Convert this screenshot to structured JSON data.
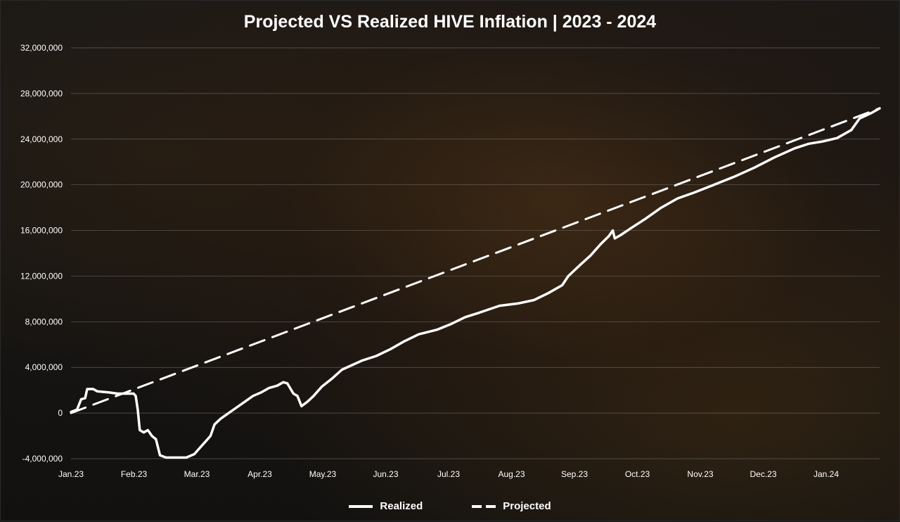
{
  "chart_data": {
    "type": "line",
    "title": "Projected VS Realized HIVE Inflation | 2023 - 2024",
    "xlabel": "",
    "ylabel": "",
    "x_tick_labels": [
      "Jan.23",
      "Feb.23",
      "Mar.23",
      "Apr.23",
      "May.23",
      "Jun.23",
      "Jul.23",
      "Aug.23",
      "Sep.23",
      "Oct.23",
      "Nov.23",
      "Dec.23",
      "Jan.24"
    ],
    "y_tick_labels": [
      "-4,000,000",
      "0",
      "4,000,000",
      "8,000,000",
      "12,000,000",
      "16,000,000",
      "20,000,000",
      "24,000,000",
      "28,000,000",
      "32,000,000"
    ],
    "ylim": [
      -4000000,
      32000000
    ],
    "grid": true,
    "legend_position": "bottom",
    "background_color": "#141414",
    "line_color": "#ffffff",
    "series": [
      {
        "name": "Realized",
        "style": "solid",
        "points": [
          [
            "2023-01-01",
            100000
          ],
          [
            "2023-01-04",
            300000
          ],
          [
            "2023-01-06",
            1200000
          ],
          [
            "2023-01-08",
            1300000
          ],
          [
            "2023-01-09",
            2100000
          ],
          [
            "2023-01-12",
            2100000
          ],
          [
            "2023-01-14",
            1900000
          ],
          [
            "2023-01-20",
            1800000
          ],
          [
            "2023-01-24",
            1700000
          ],
          [
            "2023-01-30",
            1700000
          ],
          [
            "2023-02-01",
            1700000
          ],
          [
            "2023-02-02",
            1500000
          ],
          [
            "2023-02-03",
            300000
          ],
          [
            "2023-02-04",
            -1500000
          ],
          [
            "2023-02-06",
            -1700000
          ],
          [
            "2023-02-08",
            -1500000
          ],
          [
            "2023-02-10",
            -2000000
          ],
          [
            "2023-02-12",
            -2300000
          ],
          [
            "2023-02-14",
            -3700000
          ],
          [
            "2023-02-17",
            -3900000
          ],
          [
            "2023-02-22",
            -3900000
          ],
          [
            "2023-02-27",
            -3900000
          ],
          [
            "2023-03-03",
            -3600000
          ],
          [
            "2023-03-05",
            -3200000
          ],
          [
            "2023-03-08",
            -2600000
          ],
          [
            "2023-03-11",
            -2000000
          ],
          [
            "2023-03-13",
            -1000000
          ],
          [
            "2023-03-16",
            -500000
          ],
          [
            "2023-03-20",
            0
          ],
          [
            "2023-03-24",
            500000
          ],
          [
            "2023-03-28",
            1000000
          ],
          [
            "2023-04-01",
            1500000
          ],
          [
            "2023-04-05",
            1800000
          ],
          [
            "2023-04-09",
            2200000
          ],
          [
            "2023-04-13",
            2400000
          ],
          [
            "2023-04-16",
            2700000
          ],
          [
            "2023-04-18",
            2600000
          ],
          [
            "2023-04-21",
            1700000
          ],
          [
            "2023-04-23",
            1500000
          ],
          [
            "2023-04-25",
            600000
          ],
          [
            "2023-04-28",
            1000000
          ],
          [
            "2023-05-01",
            1500000
          ],
          [
            "2023-05-05",
            2300000
          ],
          [
            "2023-05-10",
            3000000
          ],
          [
            "2023-05-15",
            3800000
          ],
          [
            "2023-05-20",
            4200000
          ],
          [
            "2023-05-25",
            4600000
          ],
          [
            "2023-06-01",
            5000000
          ],
          [
            "2023-06-08",
            5600000
          ],
          [
            "2023-06-15",
            6300000
          ],
          [
            "2023-06-22",
            6900000
          ],
          [
            "2023-07-01",
            7300000
          ],
          [
            "2023-07-08",
            7800000
          ],
          [
            "2023-07-15",
            8400000
          ],
          [
            "2023-07-22",
            8800000
          ],
          [
            "2023-08-01",
            9400000
          ],
          [
            "2023-08-10",
            9600000
          ],
          [
            "2023-08-18",
            9900000
          ],
          [
            "2023-08-25",
            10500000
          ],
          [
            "2023-09-01",
            11200000
          ],
          [
            "2023-09-04",
            12000000
          ],
          [
            "2023-09-10",
            13000000
          ],
          [
            "2023-09-15",
            13800000
          ],
          [
            "2023-09-20",
            14800000
          ],
          [
            "2023-09-24",
            15500000
          ],
          [
            "2023-09-26",
            16000000
          ],
          [
            "2023-09-27",
            15300000
          ],
          [
            "2023-09-30",
            15600000
          ],
          [
            "2023-10-05",
            16200000
          ],
          [
            "2023-10-12",
            17000000
          ],
          [
            "2023-10-20",
            18000000
          ],
          [
            "2023-10-28",
            18800000
          ],
          [
            "2023-11-05",
            19300000
          ],
          [
            "2023-11-15",
            20000000
          ],
          [
            "2023-11-25",
            20700000
          ],
          [
            "2023-12-05",
            21500000
          ],
          [
            "2023-12-15",
            22400000
          ],
          [
            "2023-12-25",
            23200000
          ],
          [
            "2024-01-01",
            23600000
          ],
          [
            "2024-01-08",
            23800000
          ],
          [
            "2024-01-15",
            24100000
          ],
          [
            "2024-01-22",
            24800000
          ],
          [
            "2024-01-26",
            25800000
          ],
          [
            "2024-02-01",
            26300000
          ],
          [
            "2024-02-05",
            26700000
          ]
        ]
      },
      {
        "name": "Projected",
        "style": "dashed",
        "points": [
          [
            "2023-01-01",
            0
          ],
          [
            "2024-02-05",
            26700000
          ]
        ]
      }
    ]
  }
}
